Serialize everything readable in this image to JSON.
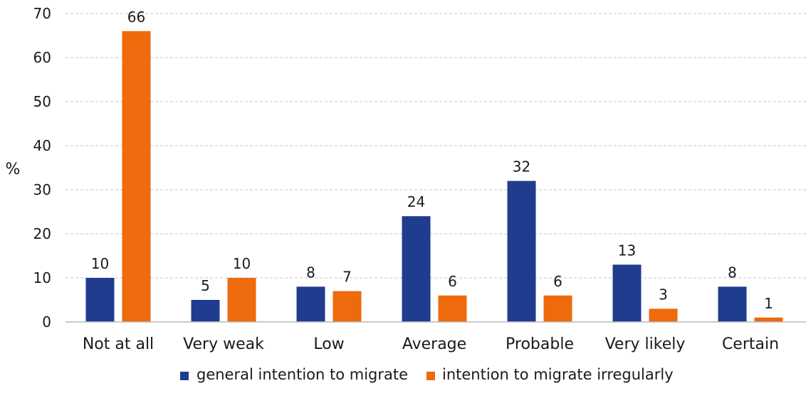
{
  "chart_data": {
    "type": "bar",
    "title": "",
    "xlabel": "",
    "ylabel": "%",
    "ylim": [
      0,
      70
    ],
    "yticks": [
      0,
      10,
      20,
      30,
      40,
      50,
      60,
      70
    ],
    "grid": true,
    "legend_position": "bottom",
    "categories": [
      "Not at all",
      "Very weak",
      "Low",
      "Average",
      "Probable",
      "Very likely",
      "Certain"
    ],
    "series": [
      {
        "name": "general intention to migrate",
        "color": "#1f3c8f",
        "values": [
          10,
          5,
          8,
          24,
          32,
          13,
          8
        ]
      },
      {
        "name": "intention to migrate irregularly",
        "color": "#ee6a0c",
        "values": [
          66,
          10,
          7,
          6,
          6,
          3,
          1
        ]
      }
    ]
  }
}
